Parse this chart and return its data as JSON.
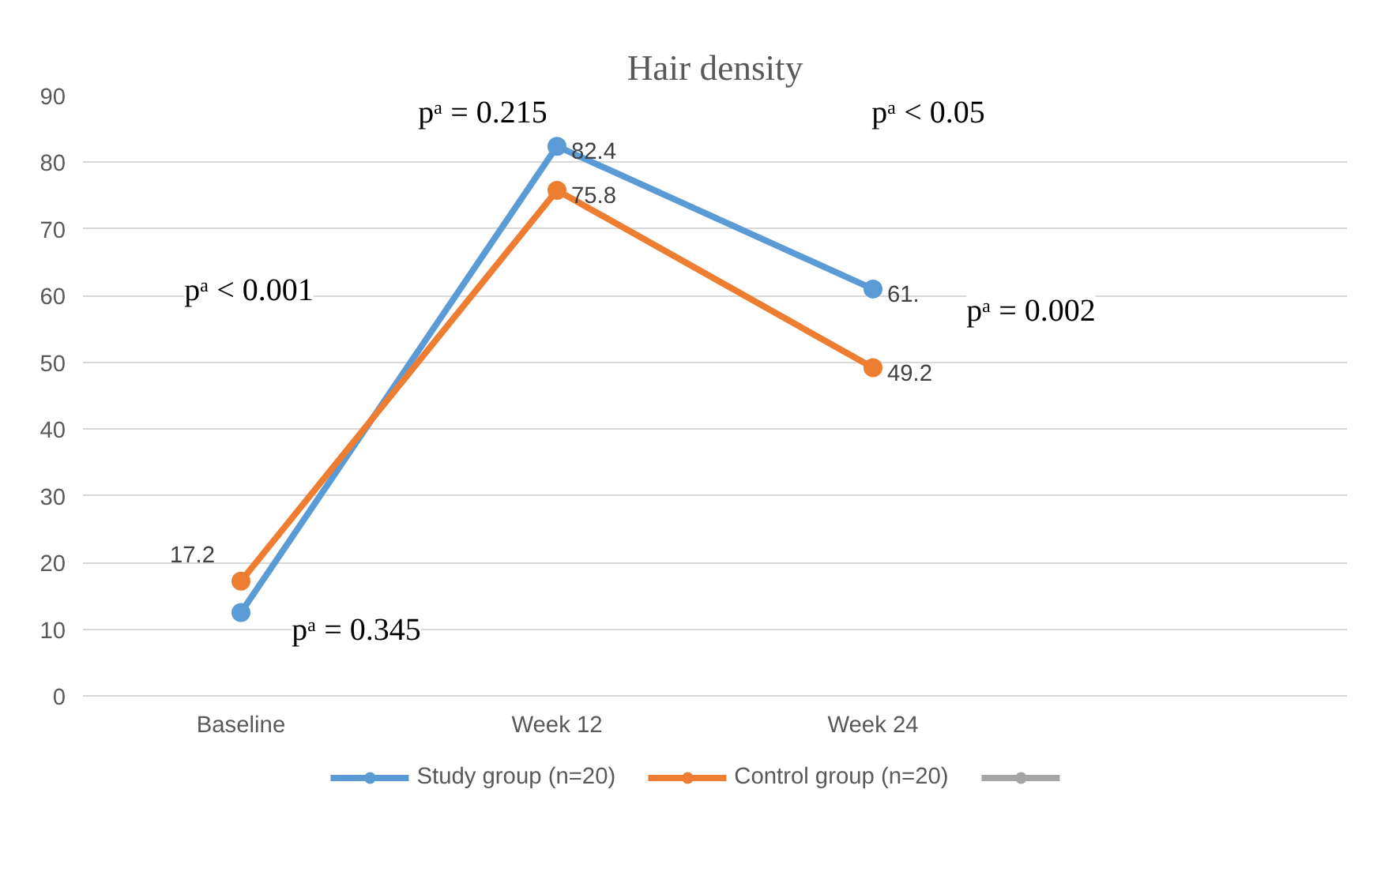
{
  "chart_data": {
    "type": "line",
    "title": "Hair density",
    "categories": [
      "Baseline",
      "Week 12",
      "Week 24"
    ],
    "series": [
      {
        "name": "Study group (n=20)",
        "color": "#5b9bd5",
        "values": [
          12.5,
          82.4,
          61
        ],
        "value_labels": [
          null,
          "82.4",
          "61."
        ]
      },
      {
        "name": "Control group (n=20)",
        "color": "#ed7d31",
        "values": [
          17.2,
          75.8,
          49.2
        ],
        "value_labels": [
          "17.2",
          "75.8",
          "49.2"
        ]
      },
      {
        "color": "#a5a5a5",
        "values": [
          null,
          null,
          null
        ]
      }
    ],
    "ylim": [
      0,
      90
    ],
    "yticks": [
      0,
      10,
      20,
      30,
      40,
      50,
      60,
      70,
      80,
      90
    ],
    "grid": "y",
    "legend": "bottom",
    "marker": "circle",
    "annotations": [
      "pᵃ = 0.215",
      "pᵃ < 0.05",
      "pᵃ < 0.001",
      "pᵃ = 0.002",
      "pᵃ = 0.345"
    ]
  }
}
